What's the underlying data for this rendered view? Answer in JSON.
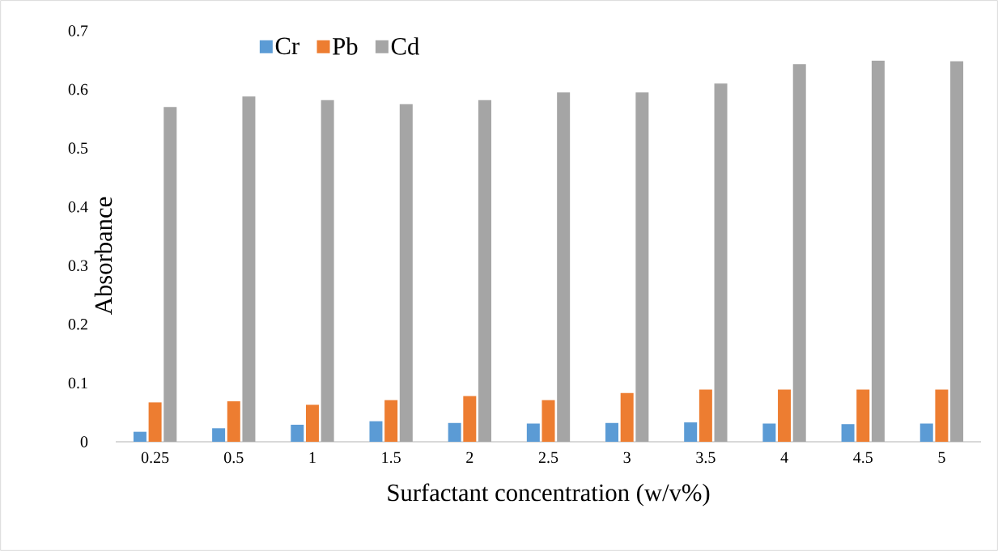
{
  "chart_data": {
    "type": "bar",
    "xlabel": "Surfactant concentration (w/v%)",
    "ylabel": "Absorbance",
    "categories": [
      "0.25",
      "0.5",
      "1",
      "1.5",
      "2",
      "2.5",
      "3",
      "3.5",
      "4",
      "4.5",
      "5"
    ],
    "series": [
      {
        "name": "Cr",
        "color": "#5b9bd5",
        "values": [
          0.017,
          0.023,
          0.029,
          0.035,
          0.032,
          0.031,
          0.032,
          0.033,
          0.031,
          0.03,
          0.031
        ]
      },
      {
        "name": "Pb",
        "color": "#ed7d31",
        "values": [
          0.067,
          0.069,
          0.063,
          0.071,
          0.078,
          0.071,
          0.083,
          0.089,
          0.089,
          0.089,
          0.089
        ]
      },
      {
        "name": "Cd",
        "color": "#a5a5a5",
        "values": [
          0.57,
          0.588,
          0.582,
          0.575,
          0.582,
          0.595,
          0.595,
          0.61,
          0.643,
          0.649,
          0.648
        ]
      }
    ],
    "ylim": [
      0,
      0.7
    ],
    "yticks": [
      0,
      0.1,
      0.2,
      0.3,
      0.4,
      0.5,
      0.6,
      0.7
    ],
    "grid": false,
    "legend": "top"
  }
}
